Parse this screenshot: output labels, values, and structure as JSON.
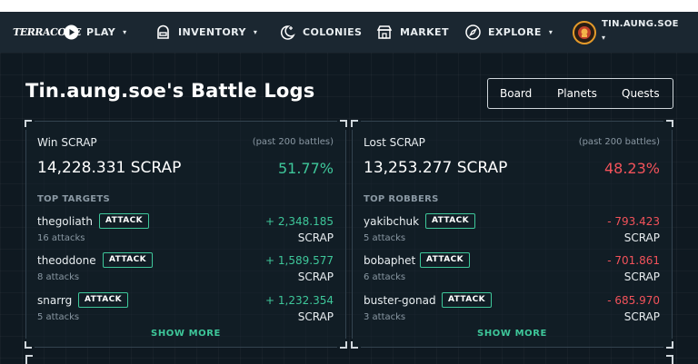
{
  "nav": {
    "logo": "TERRACORE",
    "play": "PLAY",
    "inventory": "INVENTORY",
    "colonies": "COLONIES",
    "market": "MARKET",
    "explore": "EXPLORE",
    "username": "TIN.AUNG.SOE",
    "caret": "▾"
  },
  "page": {
    "title": "Tin.aung.soe's Battle Logs",
    "tabs": [
      "Board",
      "Planets",
      "Quests"
    ]
  },
  "win": {
    "title": "Win SCRAP",
    "subtitle": "(past 200 battles)",
    "total": "14,228.331 SCRAP",
    "percent": "51.77%",
    "section": "TOP TARGETS",
    "attack_label": "ATTACK",
    "rows": [
      {
        "name": "thegoliath",
        "count": "16 attacks",
        "amount": "+ 2,348.185",
        "unit": "SCRAP"
      },
      {
        "name": "theoddone",
        "count": "8 attacks",
        "amount": "+ 1,589.577",
        "unit": "SCRAP"
      },
      {
        "name": "snarrg",
        "count": "5 attacks",
        "amount": "+ 1,232.354",
        "unit": "SCRAP"
      }
    ],
    "show_more": "SHOW MORE"
  },
  "lost": {
    "title": "Lost SCRAP",
    "subtitle": "(past 200 battles)",
    "total": "13,253.277 SCRAP",
    "percent": "48.23%",
    "section": "TOP ROBBERS",
    "attack_label": "ATTACK",
    "rows": [
      {
        "name": "yakibchuk",
        "count": "5 attacks",
        "amount": "- 793.423",
        "unit": "SCRAP"
      },
      {
        "name": "bobaphet",
        "count": "6 attacks",
        "amount": "- 701.861",
        "unit": "SCRAP"
      },
      {
        "name": "buster-gonad",
        "count": "3 attacks",
        "amount": "- 685.970",
        "unit": "SCRAP"
      }
    ],
    "show_more": "SHOW MORE"
  },
  "colors": {
    "accent_green": "#3ec79a",
    "loss_red": "#f2525a",
    "background": "#0f1921",
    "navbar": "#1b2731"
  },
  "icons": [
    "play-icon",
    "inventory-icon",
    "colonies-icon",
    "market-icon",
    "explore-icon",
    "avatar-icon"
  ]
}
